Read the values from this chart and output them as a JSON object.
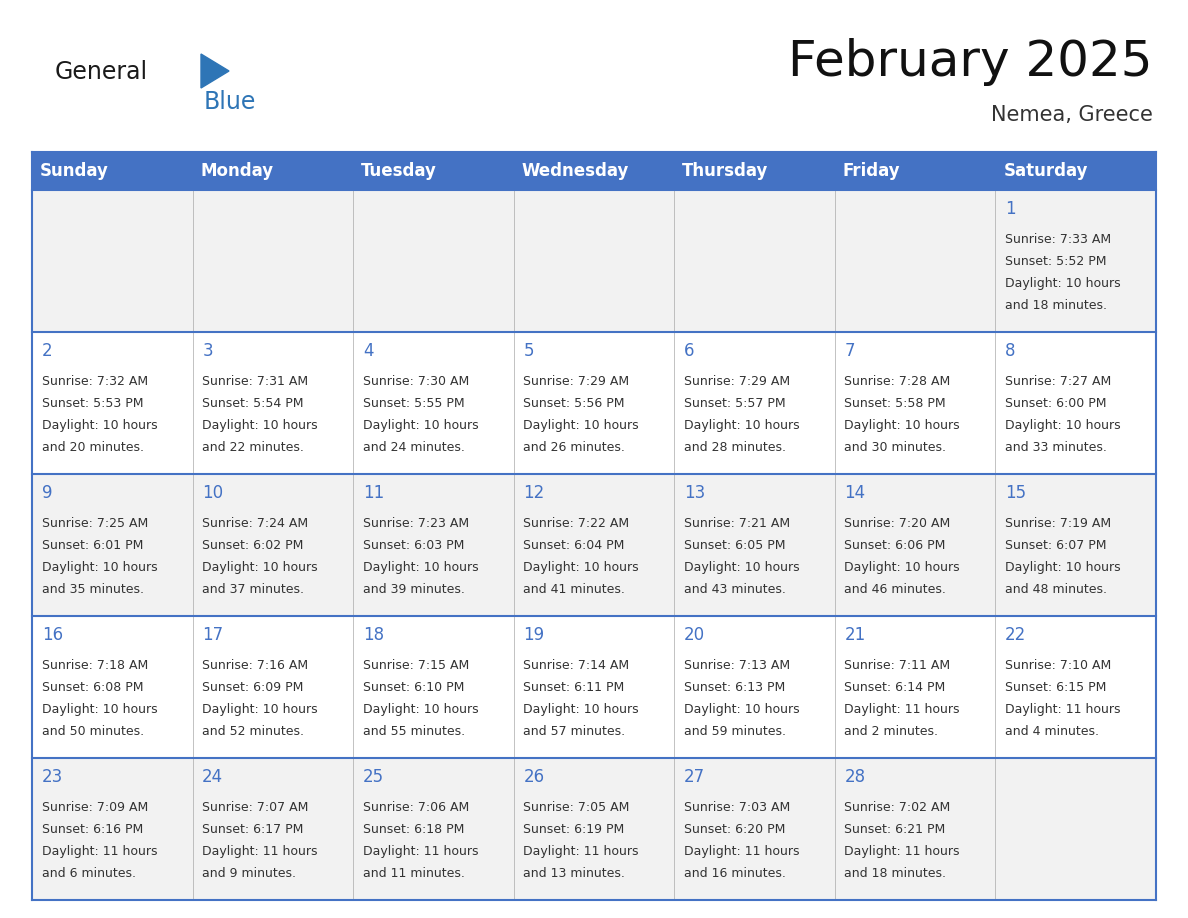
{
  "title": "February 2025",
  "subtitle": "Nemea, Greece",
  "header_bg_color": "#4472C4",
  "header_text_color": "#FFFFFF",
  "header_days": [
    "Sunday",
    "Monday",
    "Tuesday",
    "Wednesday",
    "Thursday",
    "Friday",
    "Saturday"
  ],
  "week_row_colors": [
    "#F2F2F2",
    "#FFFFFF",
    "#F2F2F2",
    "#FFFFFF",
    "#F2F2F2"
  ],
  "day_number_color": "#4472C4",
  "info_text_color": "#333333",
  "grid_line_color": "#4472C4",
  "logo_general_color": "#1a1a1a",
  "logo_blue_color": "#2E75B6",
  "bg_color": "#FFFFFF",
  "calendar_data": [
    [
      null,
      null,
      null,
      null,
      null,
      null,
      {
        "day": 1,
        "sunrise": "7:33 AM",
        "sunset": "5:52 PM",
        "daylight": "10 hours and 18 minutes."
      }
    ],
    [
      {
        "day": 2,
        "sunrise": "7:32 AM",
        "sunset": "5:53 PM",
        "daylight": "10 hours and 20 minutes."
      },
      {
        "day": 3,
        "sunrise": "7:31 AM",
        "sunset": "5:54 PM",
        "daylight": "10 hours and 22 minutes."
      },
      {
        "day": 4,
        "sunrise": "7:30 AM",
        "sunset": "5:55 PM",
        "daylight": "10 hours and 24 minutes."
      },
      {
        "day": 5,
        "sunrise": "7:29 AM",
        "sunset": "5:56 PM",
        "daylight": "10 hours and 26 minutes."
      },
      {
        "day": 6,
        "sunrise": "7:29 AM",
        "sunset": "5:57 PM",
        "daylight": "10 hours and 28 minutes."
      },
      {
        "day": 7,
        "sunrise": "7:28 AM",
        "sunset": "5:58 PM",
        "daylight": "10 hours and 30 minutes."
      },
      {
        "day": 8,
        "sunrise": "7:27 AM",
        "sunset": "6:00 PM",
        "daylight": "10 hours and 33 minutes."
      }
    ],
    [
      {
        "day": 9,
        "sunrise": "7:25 AM",
        "sunset": "6:01 PM",
        "daylight": "10 hours and 35 minutes."
      },
      {
        "day": 10,
        "sunrise": "7:24 AM",
        "sunset": "6:02 PM",
        "daylight": "10 hours and 37 minutes."
      },
      {
        "day": 11,
        "sunrise": "7:23 AM",
        "sunset": "6:03 PM",
        "daylight": "10 hours and 39 minutes."
      },
      {
        "day": 12,
        "sunrise": "7:22 AM",
        "sunset": "6:04 PM",
        "daylight": "10 hours and 41 minutes."
      },
      {
        "day": 13,
        "sunrise": "7:21 AM",
        "sunset": "6:05 PM",
        "daylight": "10 hours and 43 minutes."
      },
      {
        "day": 14,
        "sunrise": "7:20 AM",
        "sunset": "6:06 PM",
        "daylight": "10 hours and 46 minutes."
      },
      {
        "day": 15,
        "sunrise": "7:19 AM",
        "sunset": "6:07 PM",
        "daylight": "10 hours and 48 minutes."
      }
    ],
    [
      {
        "day": 16,
        "sunrise": "7:18 AM",
        "sunset": "6:08 PM",
        "daylight": "10 hours and 50 minutes."
      },
      {
        "day": 17,
        "sunrise": "7:16 AM",
        "sunset": "6:09 PM",
        "daylight": "10 hours and 52 minutes."
      },
      {
        "day": 18,
        "sunrise": "7:15 AM",
        "sunset": "6:10 PM",
        "daylight": "10 hours and 55 minutes."
      },
      {
        "day": 19,
        "sunrise": "7:14 AM",
        "sunset": "6:11 PM",
        "daylight": "10 hours and 57 minutes."
      },
      {
        "day": 20,
        "sunrise": "7:13 AM",
        "sunset": "6:13 PM",
        "daylight": "10 hours and 59 minutes."
      },
      {
        "day": 21,
        "sunrise": "7:11 AM",
        "sunset": "6:14 PM",
        "daylight": "11 hours and 2 minutes."
      },
      {
        "day": 22,
        "sunrise": "7:10 AM",
        "sunset": "6:15 PM",
        "daylight": "11 hours and 4 minutes."
      }
    ],
    [
      {
        "day": 23,
        "sunrise": "7:09 AM",
        "sunset": "6:16 PM",
        "daylight": "11 hours and 6 minutes."
      },
      {
        "day": 24,
        "sunrise": "7:07 AM",
        "sunset": "6:17 PM",
        "daylight": "11 hours and 9 minutes."
      },
      {
        "day": 25,
        "sunrise": "7:06 AM",
        "sunset": "6:18 PM",
        "daylight": "11 hours and 11 minutes."
      },
      {
        "day": 26,
        "sunrise": "7:05 AM",
        "sunset": "6:19 PM",
        "daylight": "11 hours and 13 minutes."
      },
      {
        "day": 27,
        "sunrise": "7:03 AM",
        "sunset": "6:20 PM",
        "daylight": "11 hours and 16 minutes."
      },
      {
        "day": 28,
        "sunrise": "7:02 AM",
        "sunset": "6:21 PM",
        "daylight": "11 hours and 18 minutes."
      },
      null
    ]
  ],
  "title_fontsize": 36,
  "subtitle_fontsize": 15,
  "header_fontsize": 12,
  "day_num_fontsize": 12,
  "info_fontsize": 9
}
